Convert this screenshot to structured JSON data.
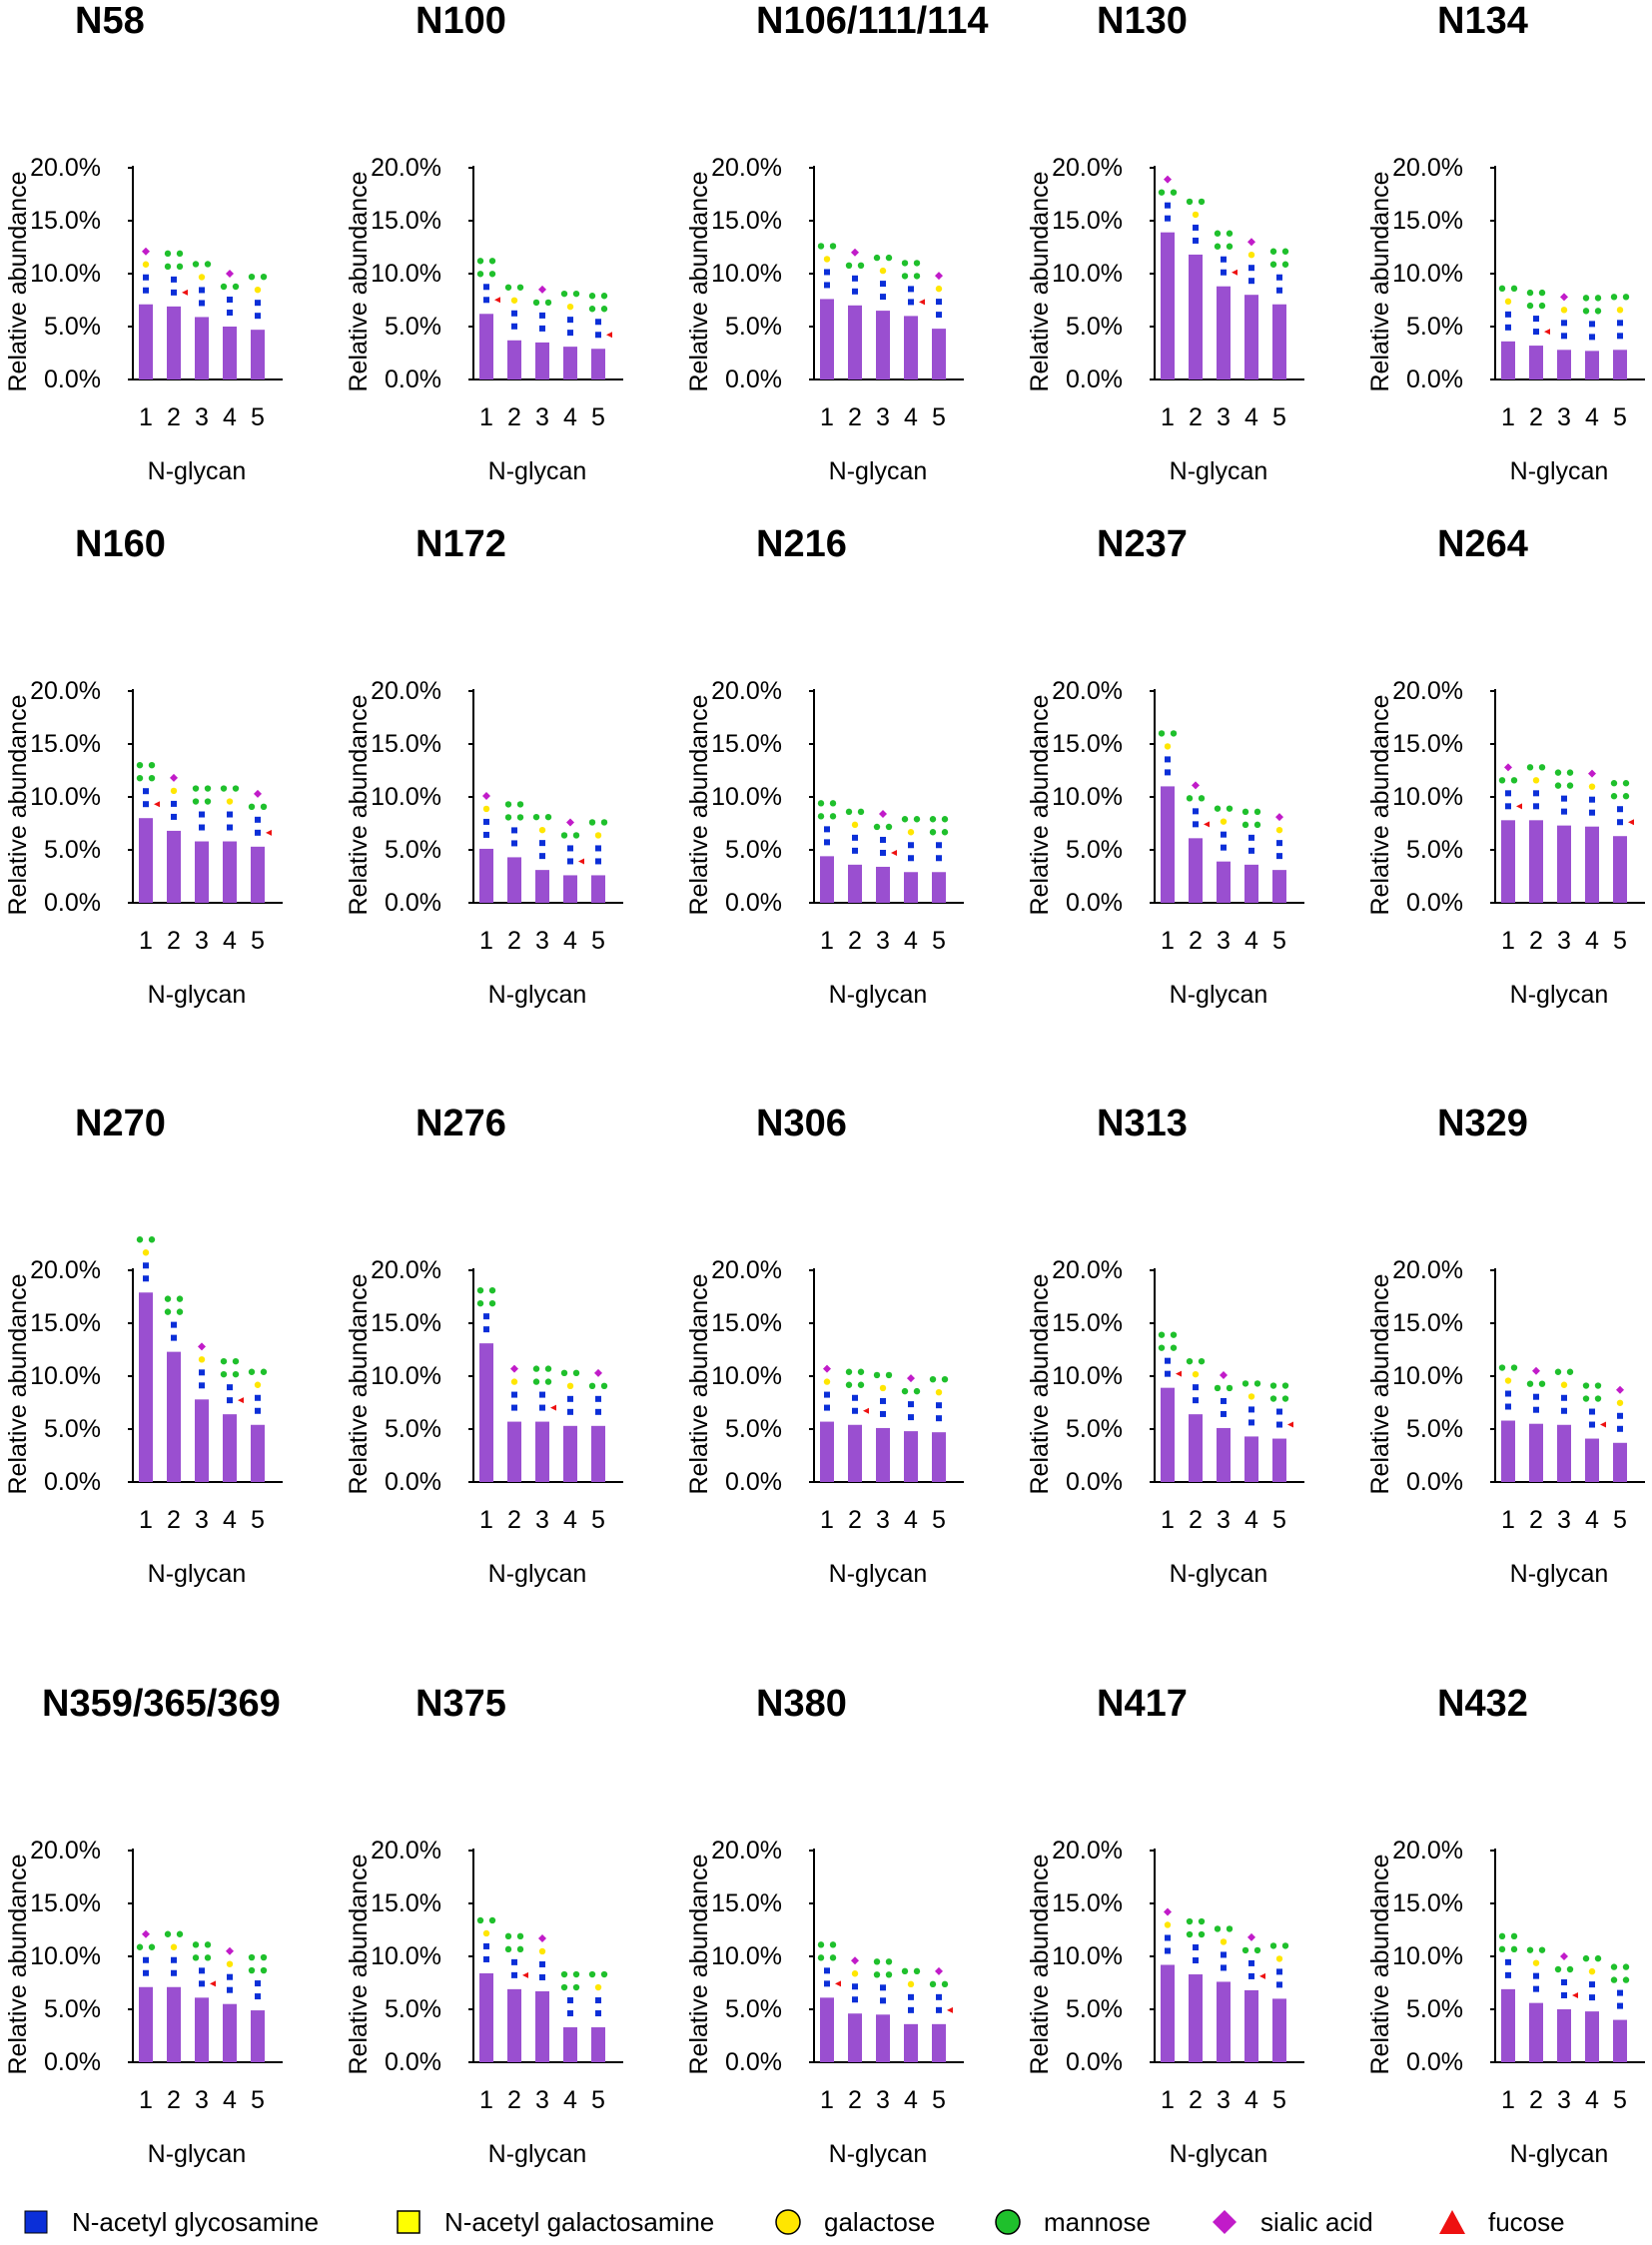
{
  "chart_data": [
    {
      "type": "bar",
      "title": "N58",
      "categories": [
        "1",
        "2",
        "3",
        "4",
        "5"
      ],
      "values": [
        7.1,
        6.9,
        5.9,
        5.0,
        4.7
      ],
      "ylabel": "Relative abundance",
      "xlabel": "N-glycan",
      "ylim": [
        0,
        20
      ],
      "yticks": [
        "0.0%",
        "5.0%",
        "10.0%",
        "15.0%",
        "20.0%"
      ]
    },
    {
      "type": "bar",
      "title": "N100",
      "categories": [
        "1",
        "2",
        "3",
        "4",
        "5"
      ],
      "values": [
        6.2,
        3.7,
        3.5,
        3.1,
        2.9
      ],
      "ylabel": "Relative abundance",
      "xlabel": "N-glycan",
      "ylim": [
        0,
        20
      ],
      "yticks": [
        "0.0%",
        "5.0%",
        "10.0%",
        "15.0%",
        "20.0%"
      ]
    },
    {
      "type": "bar",
      "title": "N106/111/114",
      "categories": [
        "1",
        "2",
        "3",
        "4",
        "5"
      ],
      "values": [
        7.6,
        7.0,
        6.5,
        6.0,
        4.8
      ],
      "ylabel": "Relative abundance",
      "xlabel": "N-glycan",
      "ylim": [
        0,
        20
      ],
      "yticks": [
        "0.0%",
        "5.0%",
        "10.0%",
        "15.0%",
        "20.0%"
      ]
    },
    {
      "type": "bar",
      "title": "N130",
      "categories": [
        "1",
        "2",
        "3",
        "4",
        "5"
      ],
      "values": [
        13.9,
        11.8,
        8.8,
        8.0,
        7.1
      ],
      "ylabel": "Relative abundance",
      "xlabel": "N-glycan",
      "ylim": [
        0,
        20
      ],
      "yticks": [
        "0.0%",
        "5.0%",
        "10.0%",
        "15.0%",
        "20.0%"
      ]
    },
    {
      "type": "bar",
      "title": "N134",
      "categories": [
        "1",
        "2",
        "3",
        "4",
        "5"
      ],
      "values": [
        3.6,
        3.2,
        2.8,
        2.7,
        2.8
      ],
      "ylabel": "Relative abundance",
      "xlabel": "N-glycan",
      "ylim": [
        0,
        20
      ],
      "yticks": [
        "0.0%",
        "5.0%",
        "10.0%",
        "15.0%",
        "20.0%"
      ]
    },
    {
      "type": "bar",
      "title": "N160",
      "categories": [
        "1",
        "2",
        "3",
        "4",
        "5"
      ],
      "values": [
        8.0,
        6.8,
        5.8,
        5.8,
        5.3
      ],
      "ylabel": "Relative abundance",
      "xlabel": "N-glycan",
      "ylim": [
        0,
        20
      ],
      "yticks": [
        "0.0%",
        "5.0%",
        "10.0%",
        "15.0%",
        "20.0%"
      ]
    },
    {
      "type": "bar",
      "title": "N172",
      "categories": [
        "1",
        "2",
        "3",
        "4",
        "5"
      ],
      "values": [
        5.1,
        4.3,
        3.1,
        2.6,
        2.6
      ],
      "ylabel": "Relative abundance",
      "xlabel": "N-glycan",
      "ylim": [
        0,
        20
      ],
      "yticks": [
        "0.0%",
        "5.0%",
        "10.0%",
        "15.0%",
        "20.0%"
      ]
    },
    {
      "type": "bar",
      "title": "N216",
      "categories": [
        "1",
        "2",
        "3",
        "4",
        "5"
      ],
      "values": [
        4.4,
        3.6,
        3.4,
        2.9,
        2.9
      ],
      "ylabel": "Relative abundance",
      "xlabel": "N-glycan",
      "ylim": [
        0,
        20
      ],
      "yticks": [
        "0.0%",
        "5.0%",
        "10.0%",
        "15.0%",
        "20.0%"
      ]
    },
    {
      "type": "bar",
      "title": "N237",
      "categories": [
        "1",
        "2",
        "3",
        "4",
        "5"
      ],
      "values": [
        11.0,
        6.1,
        3.9,
        3.6,
        3.1
      ],
      "ylabel": "Relative abundance",
      "xlabel": "N-glycan",
      "ylim": [
        0,
        20
      ],
      "yticks": [
        "0.0%",
        "5.0%",
        "10.0%",
        "15.0%",
        "20.0%"
      ]
    },
    {
      "type": "bar",
      "title": "N264",
      "categories": [
        "1",
        "2",
        "3",
        "4",
        "5"
      ],
      "values": [
        7.8,
        7.8,
        7.3,
        7.2,
        6.3
      ],
      "ylabel": "Relative abundance",
      "xlabel": "N-glycan",
      "ylim": [
        0,
        20
      ],
      "yticks": [
        "0.0%",
        "5.0%",
        "10.0%",
        "15.0%",
        "20.0%"
      ]
    },
    {
      "type": "bar",
      "title": "N270",
      "categories": [
        "1",
        "2",
        "3",
        "4",
        "5"
      ],
      "values": [
        17.9,
        12.3,
        7.8,
        6.4,
        5.4
      ],
      "ylabel": "Relative abundance",
      "xlabel": "N-glycan",
      "ylim": [
        0,
        20
      ],
      "yticks": [
        "0.0%",
        "5.0%",
        "10.0%",
        "15.0%",
        "20.0%"
      ]
    },
    {
      "type": "bar",
      "title": "N276",
      "categories": [
        "1",
        "2",
        "3",
        "4",
        "5"
      ],
      "values": [
        13.1,
        5.7,
        5.7,
        5.3,
        5.3
      ],
      "ylabel": "Relative abundance",
      "xlabel": "N-glycan",
      "ylim": [
        0,
        20
      ],
      "yticks": [
        "0.0%",
        "5.0%",
        "10.0%",
        "15.0%",
        "20.0%"
      ]
    },
    {
      "type": "bar",
      "title": "N306",
      "categories": [
        "1",
        "2",
        "3",
        "4",
        "5"
      ],
      "values": [
        5.7,
        5.4,
        5.1,
        4.8,
        4.7
      ],
      "ylabel": "Relative abundance",
      "xlabel": "N-glycan",
      "ylim": [
        0,
        20
      ],
      "yticks": [
        "0.0%",
        "5.0%",
        "10.0%",
        "15.0%",
        "20.0%"
      ]
    },
    {
      "type": "bar",
      "title": "N313",
      "categories": [
        "1",
        "2",
        "3",
        "4",
        "5"
      ],
      "values": [
        8.9,
        6.4,
        5.1,
        4.3,
        4.1
      ],
      "ylabel": "Relative abundance",
      "xlabel": "N-glycan",
      "ylim": [
        0,
        20
      ],
      "yticks": [
        "0.0%",
        "5.0%",
        "10.0%",
        "15.0%",
        "20.0%"
      ]
    },
    {
      "type": "bar",
      "title": "N329",
      "categories": [
        "1",
        "2",
        "3",
        "4",
        "5"
      ],
      "values": [
        5.8,
        5.5,
        5.4,
        4.1,
        3.7
      ],
      "ylabel": "Relative abundance",
      "xlabel": "N-glycan",
      "ylim": [
        0,
        20
      ],
      "yticks": [
        "0.0%",
        "5.0%",
        "10.0%",
        "15.0%",
        "20.0%"
      ]
    },
    {
      "type": "bar",
      "title": "N359/365/369",
      "categories": [
        "1",
        "2",
        "3",
        "4",
        "5"
      ],
      "values": [
        7.1,
        7.1,
        6.1,
        5.5,
        4.9
      ],
      "ylabel": "Relative abundance",
      "xlabel": "N-glycan",
      "ylim": [
        0,
        20
      ],
      "yticks": [
        "0.0%",
        "5.0%",
        "10.0%",
        "15.0%",
        "20.0%"
      ]
    },
    {
      "type": "bar",
      "title": "N375",
      "categories": [
        "1",
        "2",
        "3",
        "4",
        "5"
      ],
      "values": [
        8.4,
        6.9,
        6.7,
        3.3,
        3.3
      ],
      "ylabel": "Relative abundance",
      "xlabel": "N-glycan",
      "ylim": [
        0,
        20
      ],
      "yticks": [
        "0.0%",
        "5.0%",
        "10.0%",
        "15.0%",
        "20.0%"
      ]
    },
    {
      "type": "bar",
      "title": "N380",
      "categories": [
        "1",
        "2",
        "3",
        "4",
        "5"
      ],
      "values": [
        6.1,
        4.6,
        4.5,
        3.6,
        3.6
      ],
      "ylabel": "Relative abundance",
      "xlabel": "N-glycan",
      "ylim": [
        0,
        20
      ],
      "yticks": [
        "0.0%",
        "5.0%",
        "10.0%",
        "15.0%",
        "20.0%"
      ]
    },
    {
      "type": "bar",
      "title": "N417",
      "categories": [
        "1",
        "2",
        "3",
        "4",
        "5"
      ],
      "values": [
        9.2,
        8.3,
        7.6,
        6.8,
        6.0
      ],
      "ylabel": "Relative abundance",
      "xlabel": "N-glycan",
      "ylim": [
        0,
        20
      ],
      "yticks": [
        "0.0%",
        "5.0%",
        "10.0%",
        "15.0%",
        "20.0%"
      ]
    },
    {
      "type": "bar",
      "title": "N432",
      "categories": [
        "1",
        "2",
        "3",
        "4",
        "5"
      ],
      "values": [
        6.9,
        5.6,
        5.0,
        4.8,
        4.0
      ],
      "ylabel": "Relative abundance",
      "xlabel": "N-glycan",
      "ylim": [
        0,
        20
      ],
      "yticks": [
        "0.0%",
        "5.0%",
        "10.0%",
        "15.0%",
        "20.0%"
      ]
    }
  ],
  "colors": {
    "bar": "#9a4fd0",
    "axis": "#000000",
    "glcnac": "#0b2fd8",
    "galnac": "#ffff00",
    "galactose": "#ffe600",
    "mannose": "#1fc02c",
    "sialic_acid": "#c11bc9",
    "fucose": "#ee1111"
  },
  "legend": [
    {
      "label": "N-acetyl glycosamine",
      "icon": "blue-square-icon"
    },
    {
      "label": "N-acetyl galactosamine",
      "icon": "yellow-square-icon"
    },
    {
      "label": "galactose",
      "icon": "yellow-circle-icon"
    },
    {
      "label": "mannose",
      "icon": "green-circle-icon"
    },
    {
      "label": "sialic acid",
      "icon": "magenta-diamond-icon"
    },
    {
      "label": "fucose",
      "icon": "red-triangle-icon"
    }
  ]
}
